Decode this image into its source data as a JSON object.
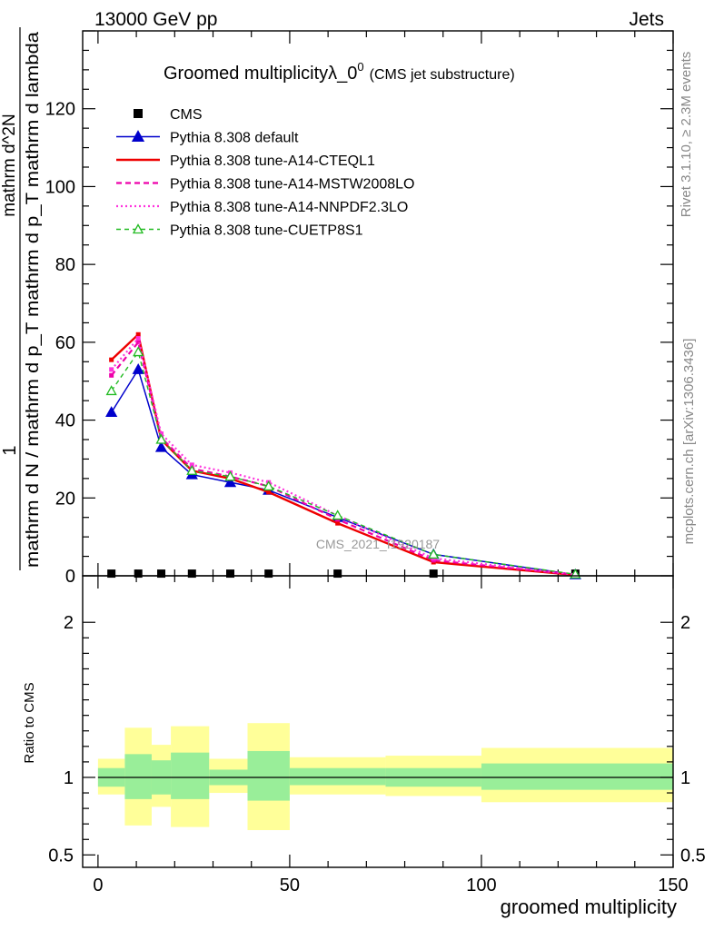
{
  "header": {
    "left": "13000 GeV pp",
    "right": "Jets"
  },
  "side_labels": {
    "rivet": "Rivet 3.1.10, ≥ 2.3M events",
    "mcplots": "mcplots.cern.ch [arXiv:1306.3436]"
  },
  "watermark": "CMS_2021_I1920187",
  "chart_data": [
    {
      "type": "line",
      "title": "Groomed multiplicityλ_0",
      "title_sup": "0",
      "subtitle": "(CMS jet substructure)",
      "xlabel": "groomed multiplicity",
      "ylabel_numerator": "1",
      "ylabel_denominator": "mathrm d N / mathrm d p_T mathrm d p_T mathrm d lambda",
      "ylabel_top": "mathrm d^2N",
      "xlim": [
        -4,
        150
      ],
      "ylim": [
        0,
        140
      ],
      "yticks": [
        0,
        20,
        40,
        60,
        80,
        100,
        120
      ],
      "xticks": [
        0,
        50,
        100,
        150
      ],
      "legend_position": "top-left",
      "x": [
        3.5,
        10.5,
        16.5,
        24.5,
        34.5,
        44.5,
        62.5,
        87.5,
        124.5
      ],
      "series": [
        {
          "name": "CMS",
          "color": "#000000",
          "style": "points",
          "values": [
            0.1,
            0.1,
            0.1,
            0.1,
            0.1,
            0.1,
            0.1,
            0.1,
            0.1
          ]
        },
        {
          "name": "Pythia 8.308 default",
          "color": "#0000cc",
          "style": "solid-triangle",
          "values": [
            42,
            53,
            33,
            26,
            24,
            22,
            15,
            5.5,
            0.3
          ]
        },
        {
          "name": "Pythia 8.308 tune-A14-CTEQL1",
          "color": "#ee0000",
          "style": "solid-thick",
          "values": [
            55.5,
            62,
            35,
            27,
            25,
            21.5,
            13.5,
            3.5,
            0.2
          ]
        },
        {
          "name": "Pythia 8.308 tune-A14-MSTW2008LO",
          "color": "#ee00aa",
          "style": "dashed",
          "values": [
            51.5,
            60,
            35.5,
            27.5,
            25.5,
            23,
            14.5,
            4,
            0.3
          ]
        },
        {
          "name": "Pythia 8.308 tune-A14-NNPDF2.3LO",
          "color": "#ff33dd",
          "style": "dotted",
          "values": [
            53,
            61,
            36.5,
            28.5,
            26.5,
            24,
            15.5,
            4.5,
            0.3
          ]
        },
        {
          "name": "Pythia 8.308 tune-CUETP8S1",
          "color": "#22bb22",
          "style": "dashed-open-triangle",
          "values": [
            47.5,
            57.5,
            35,
            27,
            25.5,
            23,
            15.5,
            5.5,
            0.4
          ]
        }
      ]
    },
    {
      "type": "area",
      "ylabel": "Ratio to CMS",
      "xlabel": "groomed multiplicity",
      "xlim": [
        -4,
        150
      ],
      "ylim": [
        0.42,
        2.3
      ],
      "yticks": [
        0.5,
        1,
        2
      ],
      "ytick_labels": [
        "0.5",
        "1",
        "2"
      ],
      "xticks": [
        0,
        50,
        100,
        150
      ],
      "reference_line": 1,
      "bins": [
        {
          "lo": 0,
          "hi": 7,
          "inner": [
            0.94,
            1.06
          ],
          "outer": [
            0.89,
            1.12
          ]
        },
        {
          "lo": 7,
          "hi": 14,
          "inner": [
            0.86,
            1.15
          ],
          "outer": [
            0.69,
            1.32
          ]
        },
        {
          "lo": 14,
          "hi": 19,
          "inner": [
            0.89,
            1.11
          ],
          "outer": [
            0.81,
            1.21
          ]
        },
        {
          "lo": 19,
          "hi": 29,
          "inner": [
            0.86,
            1.16
          ],
          "outer": [
            0.68,
            1.33
          ]
        },
        {
          "lo": 29,
          "hi": 39,
          "inner": [
            0.95,
            1.05
          ],
          "outer": [
            0.9,
            1.12
          ]
        },
        {
          "lo": 39,
          "hi": 50,
          "inner": [
            0.85,
            1.17
          ],
          "outer": [
            0.66,
            1.35
          ]
        },
        {
          "lo": 50,
          "hi": 75,
          "inner": [
            0.95,
            1.06
          ],
          "outer": [
            0.89,
            1.13
          ]
        },
        {
          "lo": 75,
          "hi": 100,
          "inner": [
            0.94,
            1.06
          ],
          "outer": [
            0.88,
            1.14
          ]
        },
        {
          "lo": 100,
          "hi": 150,
          "inner": [
            0.92,
            1.09
          ],
          "outer": [
            0.84,
            1.19
          ]
        }
      ],
      "band_colors": {
        "inner": "#99ee99",
        "outer": "#ffff99"
      }
    }
  ]
}
